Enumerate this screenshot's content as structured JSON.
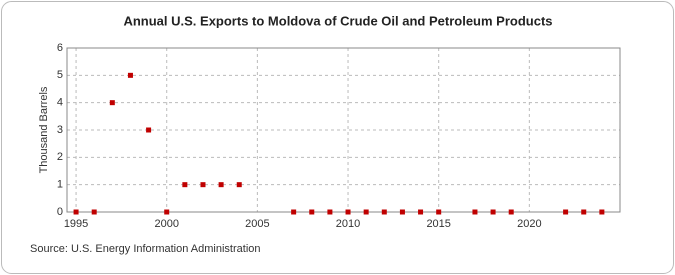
{
  "chart_data": {
    "type": "scatter",
    "title": "Annual U.S. Exports to Moldova of Crude Oil and Petroleum Products",
    "y_label": "Thousand Barrels",
    "source": "Source: U.S. Energy Information Administration",
    "x": [
      1995,
      1996,
      1997,
      1998,
      1999,
      2000,
      2001,
      2002,
      2003,
      2004,
      2007,
      2008,
      2009,
      2010,
      2011,
      2012,
      2013,
      2014,
      2015,
      2017,
      2018,
      2019,
      2022,
      2023,
      2024
    ],
    "values": [
      0,
      0,
      4,
      5,
      3,
      0,
      1,
      1,
      1,
      1,
      0,
      0,
      0,
      0,
      0,
      0,
      0,
      0,
      0,
      0,
      0,
      0,
      0,
      0,
      0
    ],
    "color": "#c00000",
    "xlim": [
      1994.5,
      2025
    ],
    "xticks": [
      1995,
      2000,
      2005,
      2010,
      2015,
      2020
    ],
    "ylim": [
      0,
      6
    ],
    "yticks": [
      0,
      1,
      2,
      3,
      4,
      5,
      6
    ],
    "grid": true
  }
}
